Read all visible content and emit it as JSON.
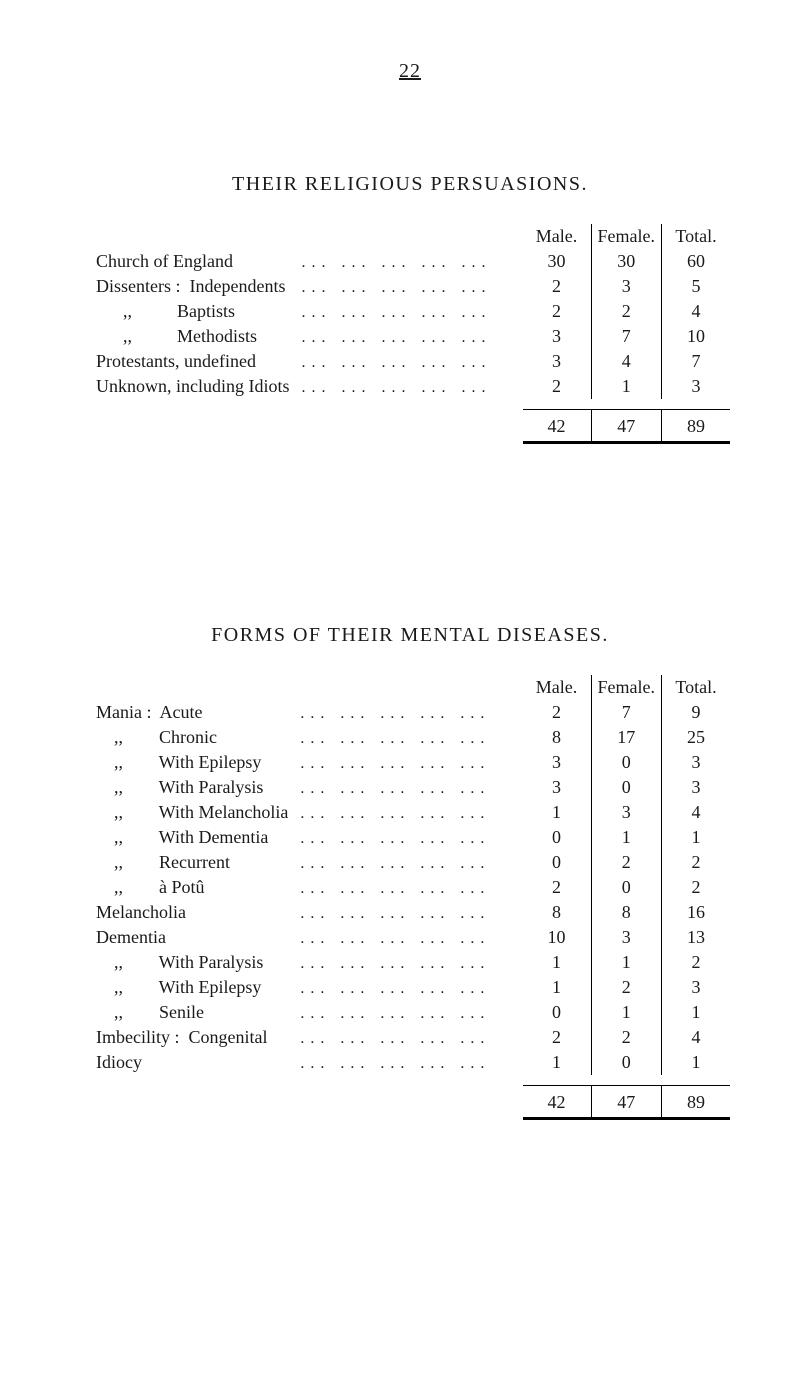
{
  "page_number": "22",
  "dots": "...   ...   ...   ...   ...",
  "table1": {
    "title": "THEIR RELIGIOUS PERSUASIONS.",
    "headers": {
      "male": "Male.",
      "female": "Female.",
      "total": "Total."
    },
    "rows": [
      {
        "label": "Church of England",
        "male": "30",
        "female": "30",
        "total": "60"
      },
      {
        "label": "Dissenters :  Independents",
        "male": "2",
        "female": "3",
        "total": "5"
      },
      {
        "label": "      ,,          Baptists",
        "male": "2",
        "female": "2",
        "total": "4"
      },
      {
        "label": "      ,,          Methodists",
        "male": "3",
        "female": "7",
        "total": "10"
      },
      {
        "label": "Protestants, undefined",
        "male": "3",
        "female": "4",
        "total": "7"
      },
      {
        "label": "Unknown, including Idiots",
        "male": "2",
        "female": "1",
        "total": "3"
      }
    ],
    "totals": {
      "male": "42",
      "female": "47",
      "total": "89"
    }
  },
  "table2": {
    "title": "FORMS OF THEIR MENTAL DISEASES.",
    "headers": {
      "male": "Male.",
      "female": "Female.",
      "total": "Total."
    },
    "rows": [
      {
        "label": "Mania :  Acute",
        "male": "2",
        "female": "7",
        "total": "9"
      },
      {
        "label": "    ,,        Chronic",
        "male": "8",
        "female": "17",
        "total": "25"
      },
      {
        "label": "    ,,        With Epilepsy",
        "male": "3",
        "female": "0",
        "total": "3"
      },
      {
        "label": "    ,,        With Paralysis",
        "male": "3",
        "female": "0",
        "total": "3"
      },
      {
        "label": "    ,,        With Melancholia",
        "male": "1",
        "female": "3",
        "total": "4"
      },
      {
        "label": "    ,,        With Dementia",
        "male": "0",
        "female": "1",
        "total": "1"
      },
      {
        "label": "    ,,        Recurrent",
        "male": "0",
        "female": "2",
        "total": "2"
      },
      {
        "label": "    ,,        à Potû",
        "male": "2",
        "female": "0",
        "total": "2"
      },
      {
        "label": "Melancholia",
        "male": "8",
        "female": "8",
        "total": "16"
      },
      {
        "label": "Dementia",
        "male": "10",
        "female": "3",
        "total": "13"
      },
      {
        "label": "    ,,        With Paralysis",
        "male": "1",
        "female": "1",
        "total": "2"
      },
      {
        "label": "    ,,        With Epilepsy",
        "male": "1",
        "female": "2",
        "total": "3"
      },
      {
        "label": "    ,,        Senile",
        "male": "0",
        "female": "1",
        "total": "1"
      },
      {
        "label": "Imbecility :  Congenital",
        "male": "2",
        "female": "2",
        "total": "4"
      },
      {
        "label": "Idiocy",
        "male": "1",
        "female": "0",
        "total": "1"
      }
    ],
    "totals": {
      "male": "42",
      "female": "47",
      "total": "89"
    }
  }
}
